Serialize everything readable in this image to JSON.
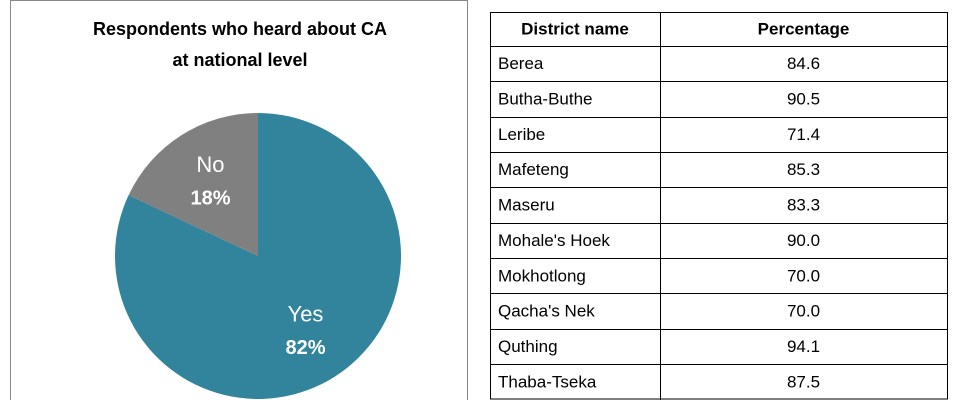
{
  "chart_data": {
    "type": "pie",
    "title": "Respondents who heard about CA at national level",
    "categories": [
      "Yes",
      "No"
    ],
    "values": [
      82,
      18
    ],
    "value_labels": [
      "82%",
      "18%"
    ],
    "colors": [
      "#31849b",
      "#808080"
    ]
  },
  "table": {
    "columns": [
      "District name",
      "Percentage"
    ],
    "rows": [
      [
        "Berea",
        "84.6"
      ],
      [
        "Butha-Buthe",
        "90.5"
      ],
      [
        "Leribe",
        "71.4"
      ],
      [
        "Mafeteng",
        "85.3"
      ],
      [
        "Maseru",
        "83.3"
      ],
      [
        "Mohale's Hoek",
        "90.0"
      ],
      [
        "Mokhotlong",
        "70.0"
      ],
      [
        "Qacha's Nek",
        "70.0"
      ],
      [
        "Quthing",
        "94.1"
      ],
      [
        "Thaba-Tseka",
        "87.5"
      ]
    ]
  }
}
